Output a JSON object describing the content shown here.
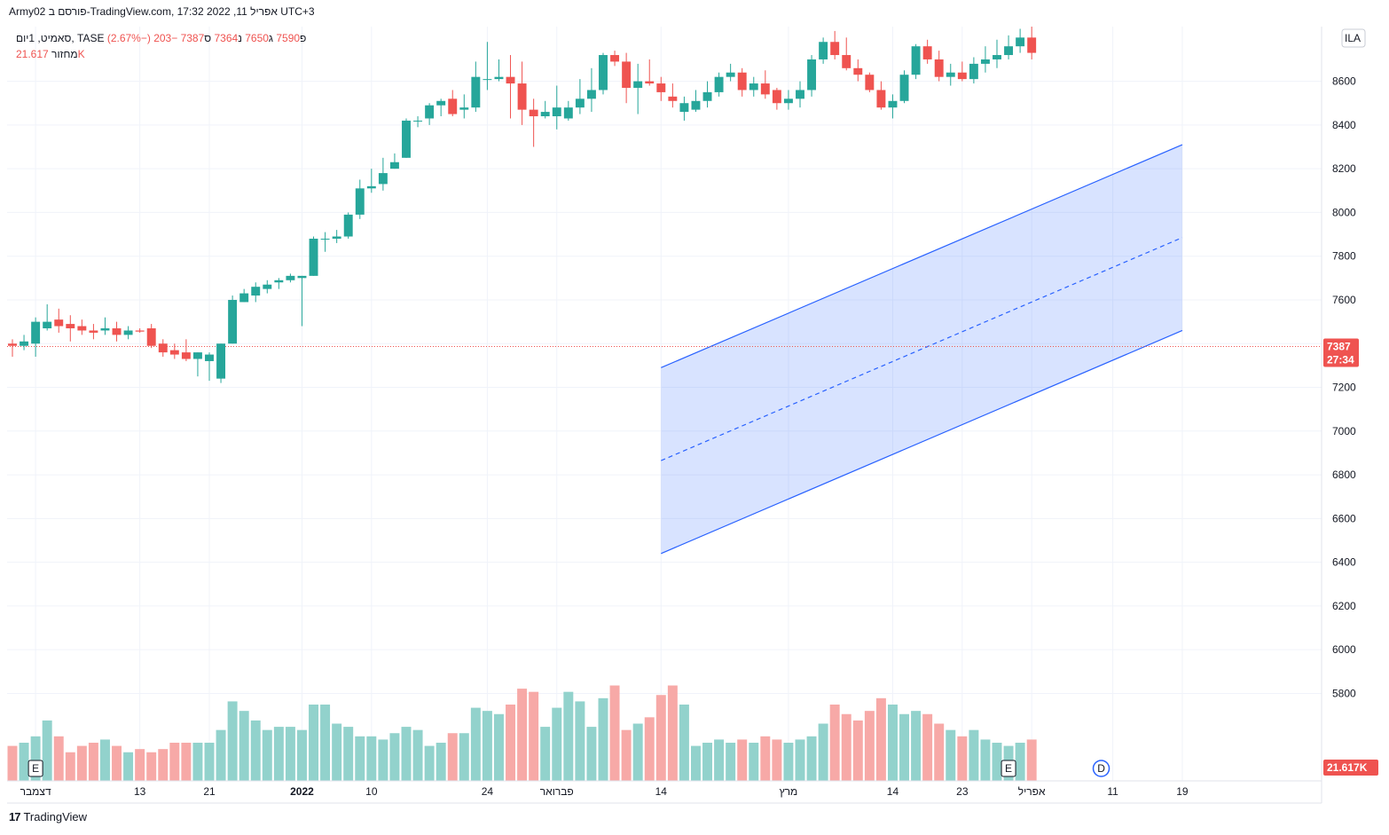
{
  "header": {
    "title": "Army02 פורסם ב-TradingView.com, 17:32 2022 ,11 אפריל UTC+3"
  },
  "legend": {
    "symbol": "סאמיט, 1יום, TASE",
    "open_label": "פ",
    "open": "7590",
    "high_label": "ג",
    "high": "7650",
    "low_label": "נ",
    "low": "7364",
    "close_label": "ס",
    "close": "7387",
    "change": "−203 (−2.67%)",
    "volume_label": "מחזור",
    "volume": "21.617K"
  },
  "price_tag": {
    "value": "7387",
    "countdown": "27:34"
  },
  "volume_tag": "21.617K",
  "scale_badge": "ILA",
  "logo_text": "TradingView",
  "colors": {
    "up": "#26a69a",
    "down": "#ef5350",
    "up_vol": "#92d2cc",
    "down_vol": "#f7a9a7",
    "channel": "#2962ff"
  },
  "chart_data": {
    "type": "candlestick",
    "ylim": [
      5400,
      8850
    ],
    "y_ticks": [
      5800,
      6000,
      6200,
      6400,
      6600,
      6800,
      7000,
      7200,
      7400,
      7600,
      7800,
      8000,
      8200,
      8400,
      8600
    ],
    "x_ticks": [
      {
        "label": "דצמבר",
        "index": 2,
        "bold": false
      },
      {
        "label": "13",
        "index": 11,
        "bold": false
      },
      {
        "label": "21",
        "index": 17,
        "bold": false
      },
      {
        "label": "2022",
        "index": 25,
        "bold": true
      },
      {
        "label": "10",
        "index": 31,
        "bold": false
      },
      {
        "label": "24",
        "index": 41,
        "bold": false
      },
      {
        "label": "פברואר",
        "index": 47,
        "bold": false
      },
      {
        "label": "14",
        "index": 56,
        "bold": false
      },
      {
        "label": "מרץ",
        "index": 67,
        "bold": false
      },
      {
        "label": "14",
        "index": 76,
        "bold": false
      },
      {
        "label": "23",
        "index": 82,
        "bold": false
      },
      {
        "label": "אפריל",
        "index": 88,
        "bold": false
      },
      {
        "label": "11",
        "index": 95,
        "bold": false
      },
      {
        "label": "19",
        "index": 101,
        "bold": false
      }
    ],
    "candles": [
      {
        "o": 7400,
        "h": 7420,
        "l": 7340,
        "c": 7390,
        "v": 11
      },
      {
        "o": 7390,
        "h": 7440,
        "l": 7370,
        "c": 7410,
        "v": 12
      },
      {
        "o": 7400,
        "h": 7520,
        "l": 7340,
        "c": 7500,
        "v": 14
      },
      {
        "o": 7470,
        "h": 7580,
        "l": 7460,
        "c": 7500,
        "v": 19
      },
      {
        "o": 7510,
        "h": 7560,
        "l": 7450,
        "c": 7480,
        "v": 14
      },
      {
        "o": 7490,
        "h": 7530,
        "l": 7410,
        "c": 7470,
        "v": 9
      },
      {
        "o": 7480,
        "h": 7510,
        "l": 7440,
        "c": 7460,
        "v": 11
      },
      {
        "o": 7460,
        "h": 7490,
        "l": 7420,
        "c": 7450,
        "v": 12
      },
      {
        "o": 7460,
        "h": 7520,
        "l": 7440,
        "c": 7470,
        "v": 13
      },
      {
        "o": 7470,
        "h": 7500,
        "l": 7410,
        "c": 7440,
        "v": 11
      },
      {
        "o": 7440,
        "h": 7480,
        "l": 7420,
        "c": 7460,
        "v": 9
      },
      {
        "o": 7460,
        "h": 7470,
        "l": 7450,
        "c": 7455,
        "v": 10
      },
      {
        "o": 7470,
        "h": 7490,
        "l": 7380,
        "c": 7390,
        "v": 9
      },
      {
        "o": 7400,
        "h": 7420,
        "l": 7340,
        "c": 7360,
        "v": 10
      },
      {
        "o": 7370,
        "h": 7400,
        "l": 7330,
        "c": 7350,
        "v": 12
      },
      {
        "o": 7360,
        "h": 7420,
        "l": 7320,
        "c": 7330,
        "v": 12
      },
      {
        "o": 7330,
        "h": 7360,
        "l": 7250,
        "c": 7360,
        "v": 12
      },
      {
        "o": 7320,
        "h": 7360,
        "l": 7230,
        "c": 7350,
        "v": 12
      },
      {
        "o": 7240,
        "h": 7400,
        "l": 7220,
        "c": 7400,
        "v": 16
      },
      {
        "o": 7400,
        "h": 7620,
        "l": 7400,
        "c": 7600,
        "v": 25
      },
      {
        "o": 7590,
        "h": 7650,
        "l": 7590,
        "c": 7630,
        "v": 22
      },
      {
        "o": 7620,
        "h": 7680,
        "l": 7590,
        "c": 7660,
        "v": 19
      },
      {
        "o": 7650,
        "h": 7690,
        "l": 7630,
        "c": 7670,
        "v": 16
      },
      {
        "o": 7680,
        "h": 7700,
        "l": 7650,
        "c": 7690,
        "v": 17
      },
      {
        "o": 7690,
        "h": 7720,
        "l": 7680,
        "c": 7710,
        "v": 17
      },
      {
        "o": 7700,
        "h": 7710,
        "l": 7480,
        "c": 7710,
        "v": 16
      },
      {
        "o": 7710,
        "h": 7890,
        "l": 7710,
        "c": 7880,
        "v": 24
      },
      {
        "o": 7880,
        "h": 7910,
        "l": 7820,
        "c": 7880,
        "v": 24
      },
      {
        "o": 7880,
        "h": 7920,
        "l": 7860,
        "c": 7890,
        "v": 18
      },
      {
        "o": 7890,
        "h": 8000,
        "l": 7880,
        "c": 7990,
        "v": 17
      },
      {
        "o": 7990,
        "h": 8150,
        "l": 7970,
        "c": 8110,
        "v": 14
      },
      {
        "o": 8110,
        "h": 8200,
        "l": 8090,
        "c": 8120,
        "v": 14
      },
      {
        "o": 8130,
        "h": 8250,
        "l": 8100,
        "c": 8180,
        "v": 13
      },
      {
        "o": 8200,
        "h": 8270,
        "l": 8200,
        "c": 8230,
        "v": 15
      },
      {
        "o": 8250,
        "h": 8430,
        "l": 8250,
        "c": 8420,
        "v": 17
      },
      {
        "o": 8420,
        "h": 8440,
        "l": 8390,
        "c": 8420,
        "v": 16
      },
      {
        "o": 8430,
        "h": 8500,
        "l": 8400,
        "c": 8490,
        "v": 11
      },
      {
        "o": 8490,
        "h": 8520,
        "l": 8440,
        "c": 8510,
        "v": 12
      },
      {
        "o": 8520,
        "h": 8560,
        "l": 8440,
        "c": 8450,
        "v": 15
      },
      {
        "o": 8470,
        "h": 8540,
        "l": 8430,
        "c": 8480,
        "v": 15
      },
      {
        "o": 8480,
        "h": 8690,
        "l": 8460,
        "c": 8620,
        "v": 23
      },
      {
        "o": 8610,
        "h": 8780,
        "l": 8560,
        "c": 8610,
        "v": 22
      },
      {
        "o": 8610,
        "h": 8700,
        "l": 8600,
        "c": 8620,
        "v": 21
      },
      {
        "o": 8620,
        "h": 8720,
        "l": 8430,
        "c": 8590,
        "v": 24
      },
      {
        "o": 8590,
        "h": 8690,
        "l": 8400,
        "c": 8470,
        "v": 29
      },
      {
        "o": 8470,
        "h": 8520,
        "l": 8300,
        "c": 8440,
        "v": 28
      },
      {
        "o": 8440,
        "h": 8510,
        "l": 8430,
        "c": 8460,
        "v": 17
      },
      {
        "o": 8440,
        "h": 8580,
        "l": 8380,
        "c": 8480,
        "v": 23
      },
      {
        "o": 8430,
        "h": 8510,
        "l": 8420,
        "c": 8480,
        "v": 28
      },
      {
        "o": 8480,
        "h": 8610,
        "l": 8450,
        "c": 8520,
        "v": 25
      },
      {
        "o": 8520,
        "h": 8660,
        "l": 8460,
        "c": 8560,
        "v": 17
      },
      {
        "o": 8560,
        "h": 8730,
        "l": 8540,
        "c": 8720,
        "v": 26
      },
      {
        "o": 8720,
        "h": 8740,
        "l": 8670,
        "c": 8690,
        "v": 30
      },
      {
        "o": 8690,
        "h": 8730,
        "l": 8500,
        "c": 8570,
        "v": 16
      },
      {
        "o": 8570,
        "h": 8680,
        "l": 8450,
        "c": 8600,
        "v": 18
      },
      {
        "o": 8600,
        "h": 8700,
        "l": 8580,
        "c": 8590,
        "v": 20
      },
      {
        "o": 8590,
        "h": 8620,
        "l": 8510,
        "c": 8550,
        "v": 27
      },
      {
        "o": 8530,
        "h": 8590,
        "l": 8480,
        "c": 8510,
        "v": 30
      },
      {
        "o": 8460,
        "h": 8530,
        "l": 8420,
        "c": 8500,
        "v": 24
      },
      {
        "o": 8470,
        "h": 8560,
        "l": 8460,
        "c": 8510,
        "v": 11
      },
      {
        "o": 8510,
        "h": 8600,
        "l": 8480,
        "c": 8550,
        "v": 12
      },
      {
        "o": 8550,
        "h": 8640,
        "l": 8530,
        "c": 8620,
        "v": 13
      },
      {
        "o": 8620,
        "h": 8680,
        "l": 8600,
        "c": 8640,
        "v": 12
      },
      {
        "o": 8640,
        "h": 8660,
        "l": 8530,
        "c": 8560,
        "v": 13
      },
      {
        "o": 8560,
        "h": 8620,
        "l": 8530,
        "c": 8590,
        "v": 12
      },
      {
        "o": 8590,
        "h": 8650,
        "l": 8520,
        "c": 8540,
        "v": 14
      },
      {
        "o": 8560,
        "h": 8570,
        "l": 8470,
        "c": 8500,
        "v": 13
      },
      {
        "o": 8500,
        "h": 8560,
        "l": 8470,
        "c": 8520,
        "v": 12
      },
      {
        "o": 8520,
        "h": 8600,
        "l": 8480,
        "c": 8560,
        "v": 13
      },
      {
        "o": 8560,
        "h": 8720,
        "l": 8530,
        "c": 8700,
        "v": 14
      },
      {
        "o": 8700,
        "h": 8800,
        "l": 8680,
        "c": 8780,
        "v": 18
      },
      {
        "o": 8780,
        "h": 8830,
        "l": 8700,
        "c": 8720,
        "v": 24
      },
      {
        "o": 8720,
        "h": 8800,
        "l": 8650,
        "c": 8660,
        "v": 21
      },
      {
        "o": 8660,
        "h": 8700,
        "l": 8600,
        "c": 8630,
        "v": 19
      },
      {
        "o": 8630,
        "h": 8640,
        "l": 8550,
        "c": 8560,
        "v": 22
      },
      {
        "o": 8560,
        "h": 8600,
        "l": 8470,
        "c": 8480,
        "v": 26
      },
      {
        "o": 8480,
        "h": 8540,
        "l": 8430,
        "c": 8510,
        "v": 24
      },
      {
        "o": 8510,
        "h": 8650,
        "l": 8500,
        "c": 8630,
        "v": 21
      },
      {
        "o": 8630,
        "h": 8770,
        "l": 8610,
        "c": 8760,
        "v": 22
      },
      {
        "o": 8760,
        "h": 8790,
        "l": 8680,
        "c": 8700,
        "v": 21
      },
      {
        "o": 8700,
        "h": 8740,
        "l": 8600,
        "c": 8620,
        "v": 18
      },
      {
        "o": 8620,
        "h": 8680,
        "l": 8580,
        "c": 8640,
        "v": 16
      },
      {
        "o": 8640,
        "h": 8690,
        "l": 8600,
        "c": 8610,
        "v": 14
      },
      {
        "o": 8610,
        "h": 8710,
        "l": 8590,
        "c": 8680,
        "v": 16
      },
      {
        "o": 8680,
        "h": 8760,
        "l": 8640,
        "c": 8700,
        "v": 13
      },
      {
        "o": 8700,
        "h": 8790,
        "l": 8660,
        "c": 8720,
        "v": 12
      },
      {
        "o": 8720,
        "h": 8810,
        "l": 8700,
        "c": 8760,
        "v": 11
      },
      {
        "o": 8760,
        "h": 8840,
        "l": 8730,
        "c": 8800,
        "v": 12
      },
      {
        "o": 8800,
        "h": 8850,
        "l": 8700,
        "c": 8730,
        "v": 13
      }
    ]
  }
}
